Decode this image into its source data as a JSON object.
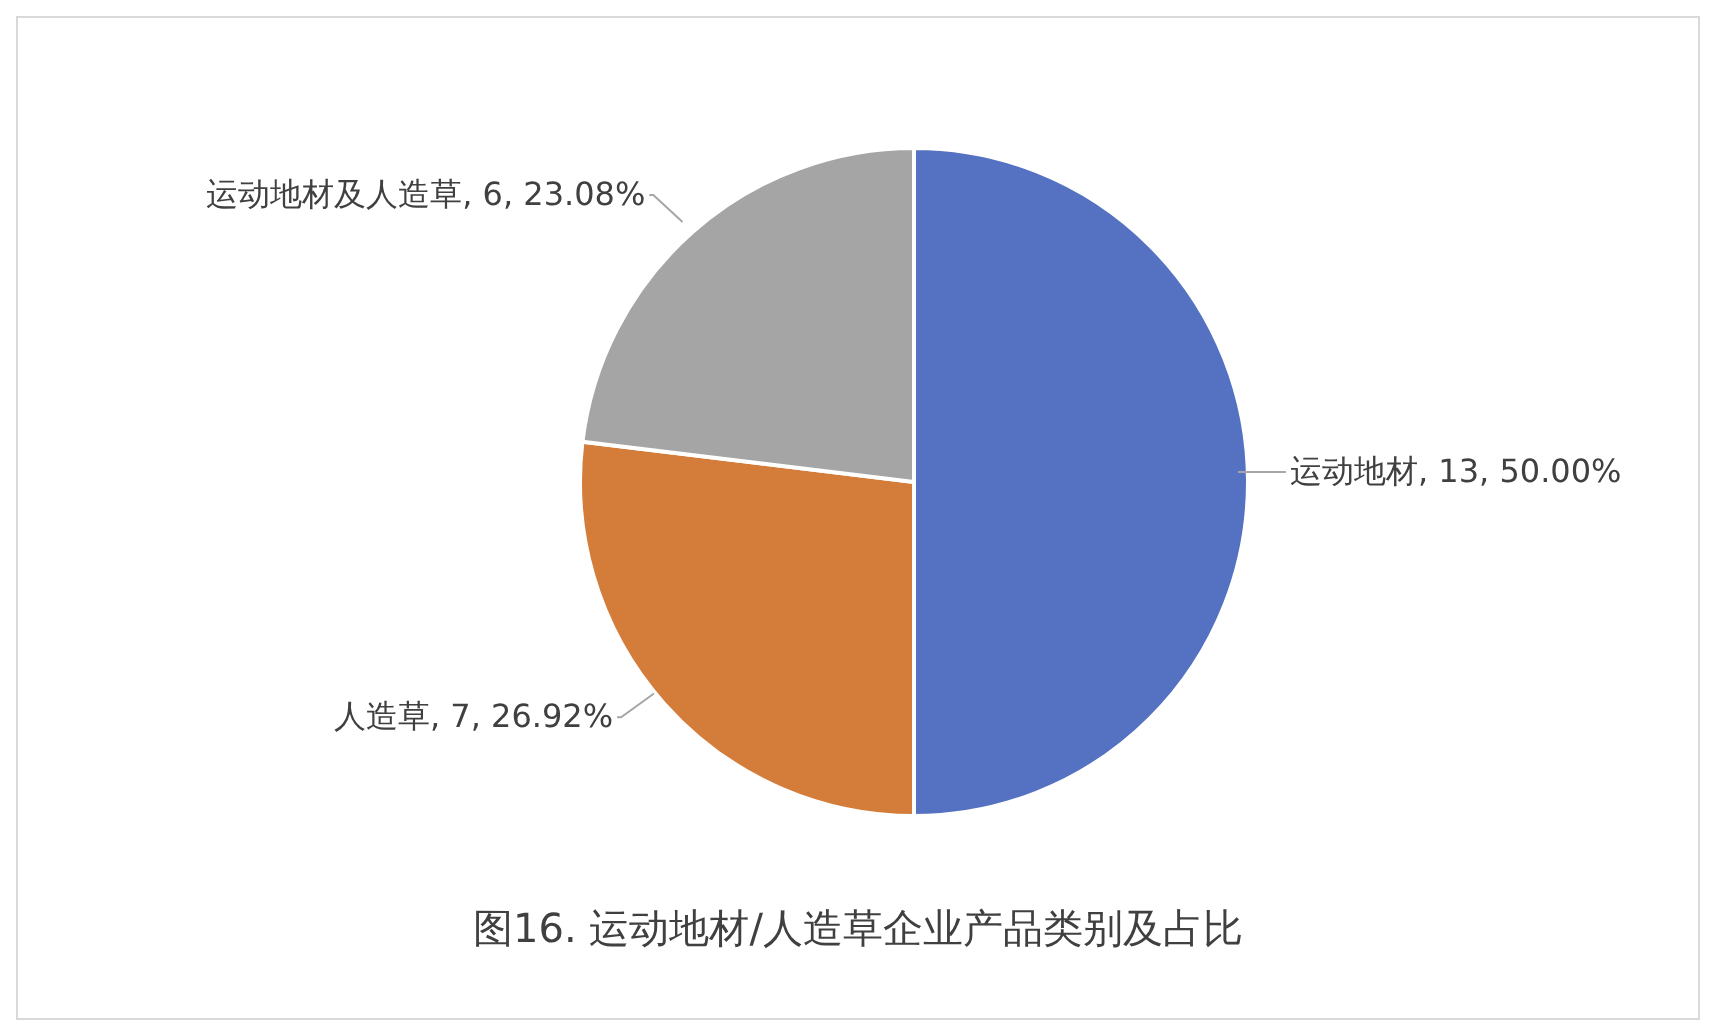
{
  "chart_data": {
    "type": "pie",
    "title": "图16. 运动地材/人造草企业产品类别及占比",
    "categories": [
      "运动地材",
      "人造草",
      "运动地材及人造草"
    ],
    "values": [
      13,
      7,
      6
    ],
    "colors": [
      "#5472c1",
      "#d47c3a",
      "#a5a5a5"
    ],
    "value_labels": [
      ", 13, 50.00%",
      ", 7, 26.92%",
      ", 6, 23.08%"
    ],
    "legend": false
  }
}
